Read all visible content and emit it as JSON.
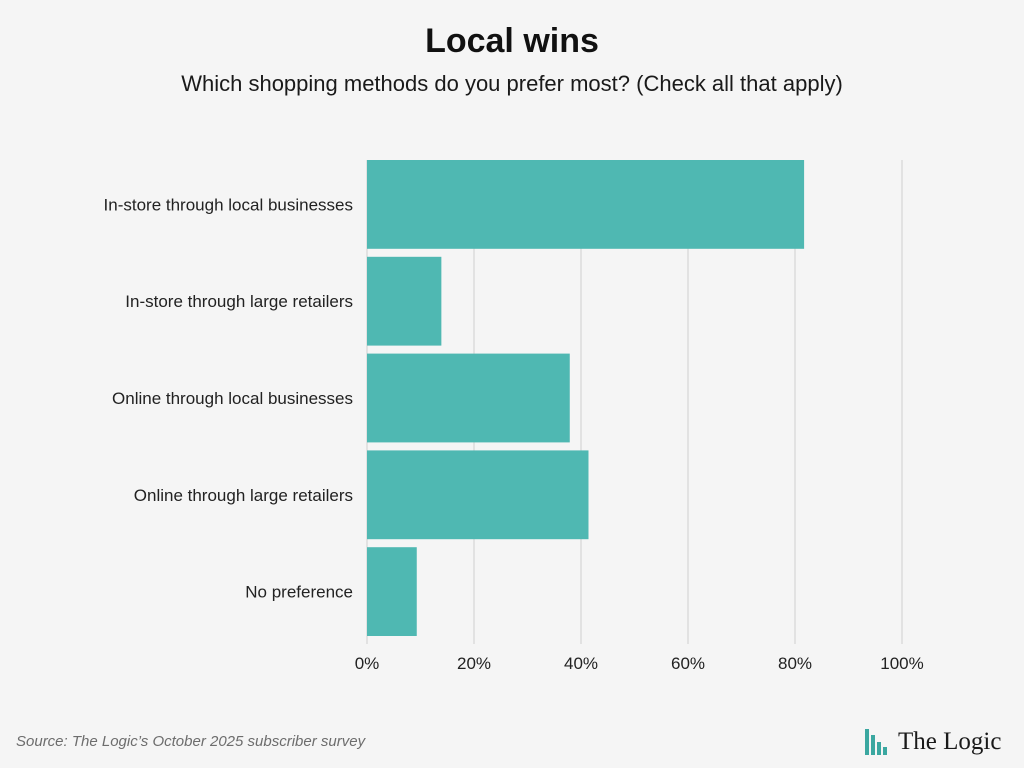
{
  "header": {
    "title": "Local wins",
    "subtitle": "Which shopping methods do you prefer most? (Check all that apply)"
  },
  "footer": {
    "source": "Source: The Logic’s October 2025 subscriber survey",
    "logo_text": "The Logic"
  },
  "colors": {
    "bar": "#4fb8b2",
    "grid": "#cfcfcf",
    "logo_mark": "#3aa7a0"
  },
  "chart_data": {
    "type": "bar",
    "orientation": "horizontal",
    "categories": [
      "In-store through local businesses",
      "In-store through large retailers",
      "Online through local businesses",
      "Online through large retailers",
      "No preference"
    ],
    "values": [
      81.7,
      13.9,
      37.9,
      41.4,
      9.3
    ],
    "unit": "%",
    "xlim": [
      0,
      100
    ],
    "xticks": [
      0,
      20,
      40,
      60,
      80,
      100
    ],
    "xtick_labels": [
      "0%",
      "20%",
      "40%",
      "60%",
      "80%",
      "100%"
    ],
    "grid": true,
    "legend": "none"
  }
}
